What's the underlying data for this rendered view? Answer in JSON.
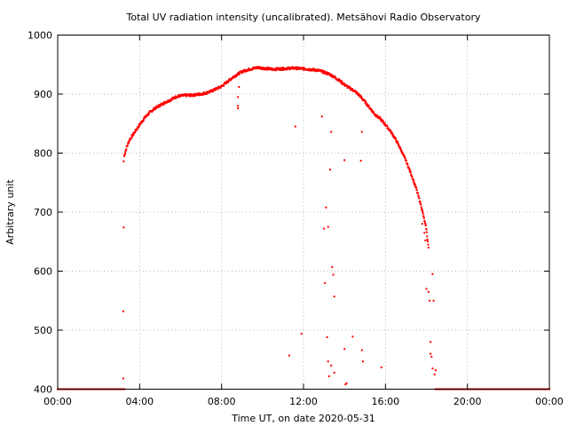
{
  "chart_data": {
    "type": "scatter",
    "title": "Total UV radiation intensity (uncalibrated). Metsähovi Radio Observatory",
    "xlabel": "Time UT, on date 2020-05-31",
    "ylabel": "Arbitrary unit",
    "xlim": [
      0,
      24
    ],
    "ylim": [
      400,
      1000
    ],
    "x_tick_values": [
      0,
      4,
      8,
      12,
      16,
      20,
      24
    ],
    "x_tick_labels": [
      "00:00",
      "04:00",
      "08:00",
      "12:00",
      "16:00",
      "20:00",
      "00:00"
    ],
    "y_ticks": [
      400,
      500,
      600,
      700,
      800,
      900,
      1000
    ],
    "grid": true,
    "grid_style": "dotted",
    "marker_color": "#ff0000",
    "series": [
      {
        "baseline_value": 400,
        "baseline_intervals": [
          [
            0.0,
            3.25
          ],
          [
            18.45,
            24.0
          ]
        ],
        "curve": [
          [
            3.25,
            795
          ],
          [
            3.35,
            808
          ],
          [
            3.5,
            822
          ],
          [
            3.75,
            835
          ],
          [
            4.0,
            848
          ],
          [
            4.25,
            860
          ],
          [
            4.5,
            869
          ],
          [
            4.75,
            876
          ],
          [
            5.0,
            881
          ],
          [
            5.25,
            886
          ],
          [
            5.5,
            890
          ],
          [
            5.75,
            895
          ],
          [
            6.0,
            897
          ],
          [
            6.25,
            898
          ],
          [
            6.5,
            898
          ],
          [
            6.75,
            899
          ],
          [
            7.0,
            900
          ],
          [
            7.25,
            902
          ],
          [
            7.5,
            905
          ],
          [
            7.75,
            909
          ],
          [
            8.0,
            913
          ],
          [
            8.25,
            920
          ],
          [
            8.5,
            927
          ],
          [
            8.75,
            933
          ],
          [
            9.0,
            938
          ],
          [
            9.25,
            941
          ],
          [
            9.5,
            943
          ],
          [
            9.75,
            945
          ],
          [
            10.0,
            944
          ],
          [
            10.5,
            942
          ],
          [
            11.0,
            943
          ],
          [
            11.5,
            944
          ],
          [
            12.0,
            943
          ],
          [
            12.25,
            942
          ],
          [
            12.5,
            941
          ],
          [
            12.75,
            940
          ],
          [
            13.0,
            937
          ],
          [
            13.25,
            934
          ],
          [
            13.5,
            929
          ],
          [
            13.75,
            923
          ],
          [
            14.0,
            916
          ],
          [
            14.25,
            910
          ],
          [
            14.5,
            905
          ],
          [
            14.75,
            897
          ],
          [
            15.0,
            887
          ],
          [
            15.25,
            876
          ],
          [
            15.5,
            865
          ],
          [
            15.75,
            858
          ],
          [
            16.0,
            848
          ],
          [
            16.25,
            837
          ],
          [
            16.5,
            823
          ],
          [
            16.75,
            806
          ],
          [
            17.0,
            787
          ],
          [
            17.25,
            765
          ],
          [
            17.5,
            740
          ],
          [
            17.75,
            710
          ],
          [
            18.0,
            670
          ],
          [
            18.1,
            640
          ]
        ],
        "outliers": [
          [
            3.22,
            786
          ],
          [
            3.22,
            674
          ],
          [
            3.2,
            532
          ],
          [
            3.2,
            418
          ],
          [
            8.8,
            880
          ],
          [
            8.8,
            876
          ],
          [
            8.8,
            895
          ],
          [
            8.85,
            912
          ],
          [
            11.3,
            457
          ],
          [
            11.6,
            845
          ],
          [
            11.9,
            494
          ],
          [
            12.9,
            862
          ],
          [
            13.0,
            672
          ],
          [
            13.05,
            580
          ],
          [
            13.1,
            708
          ],
          [
            13.15,
            488
          ],
          [
            13.2,
            675
          ],
          [
            13.2,
            447
          ],
          [
            13.25,
            422
          ],
          [
            13.3,
            772
          ],
          [
            13.35,
            836
          ],
          [
            13.35,
            440
          ],
          [
            13.4,
            607
          ],
          [
            13.45,
            594
          ],
          [
            13.5,
            557
          ],
          [
            13.5,
            428
          ],
          [
            14.0,
            788
          ],
          [
            14.0,
            468
          ],
          [
            14.05,
            408
          ],
          [
            14.1,
            410
          ],
          [
            14.4,
            489
          ],
          [
            14.8,
            787
          ],
          [
            14.85,
            836
          ],
          [
            14.85,
            466
          ],
          [
            14.9,
            447
          ],
          [
            15.8,
            437
          ],
          [
            17.8,
            680
          ],
          [
            17.9,
            665
          ],
          [
            17.95,
            652
          ],
          [
            18.0,
            570
          ],
          [
            18.1,
            565
          ],
          [
            18.15,
            550
          ],
          [
            18.2,
            480
          ],
          [
            18.2,
            460
          ],
          [
            18.25,
            455
          ],
          [
            18.3,
            435
          ],
          [
            18.3,
            595
          ],
          [
            18.35,
            550
          ],
          [
            18.4,
            425
          ],
          [
            18.45,
            432
          ]
        ]
      }
    ]
  }
}
